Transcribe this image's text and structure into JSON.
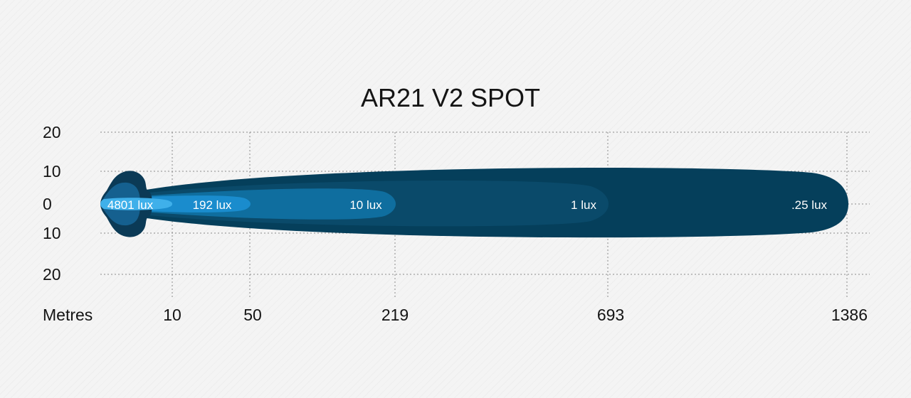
{
  "chart_data": {
    "type": "area",
    "title": "AR21 V2 SPOT",
    "xlabel": "Metres",
    "x_ticks": [
      "10",
      "50",
      "219",
      "693",
      "1386"
    ],
    "y_ticks": [
      "20",
      "10",
      "0",
      "10",
      "20"
    ],
    "grid": true,
    "colors": {
      "background": "#f4f4f4",
      "zone_025": "#053f5b",
      "zone_1": "#0a4a6a",
      "zone_10": "#0f6e9f",
      "zone_192": "#1a8ccd",
      "zone_4801": "#3fb0ea",
      "lamp_outer": "#0b3a56",
      "lamp_inner": "#15608f"
    },
    "zones": [
      {
        "label": ".25 lux",
        "reach_m": 1386
      },
      {
        "label": "1 lux",
        "reach_m": 693
      },
      {
        "label": "10 lux",
        "reach_m": 219
      },
      {
        "label": "192 lux",
        "reach_m": 50
      },
      {
        "label": "4801 lux",
        "reach_m": 10
      }
    ]
  }
}
